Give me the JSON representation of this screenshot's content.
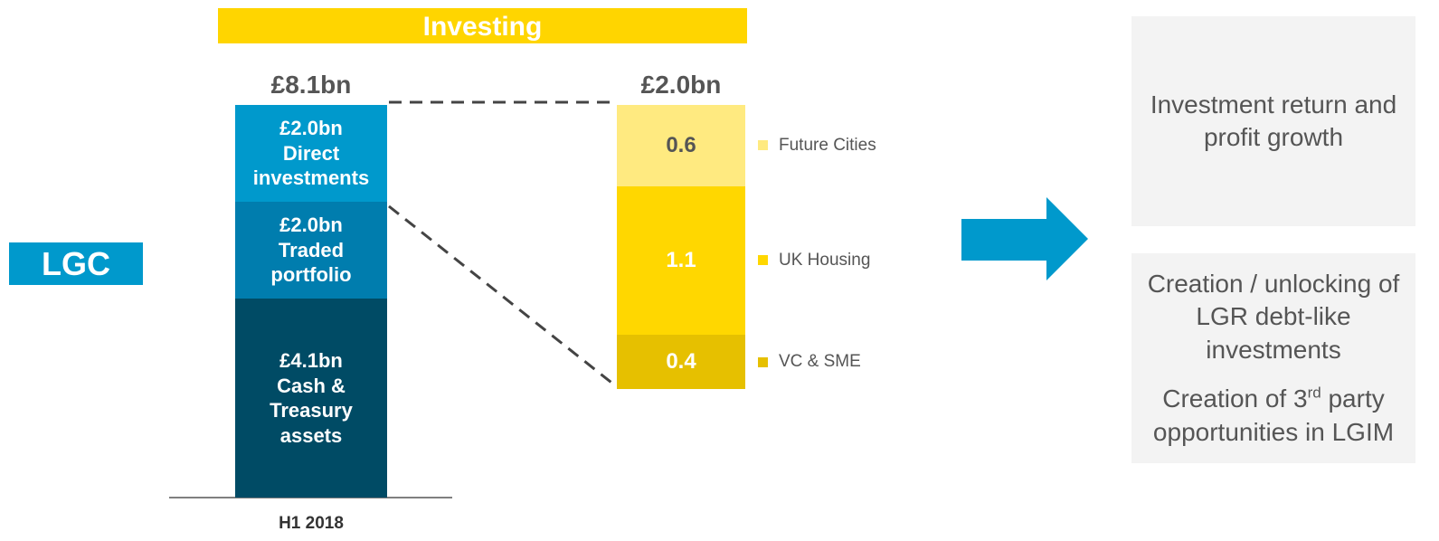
{
  "banner": "Investing",
  "side_label": "LGC",
  "chart_data": [
    {
      "type": "stacked-bar",
      "total_label": "£8.1bn",
      "categories": [
        "H1 2018"
      ],
      "ylim": [
        0,
        8.1
      ],
      "series": [
        {
          "name": "Cash & Treasury assets",
          "color": "#004b65",
          "label_color": "#ffffff",
          "values": [
            4.1
          ],
          "value_labels": [
            "£4.1bn"
          ]
        },
        {
          "name": "Traded portfolio",
          "color": "#007dae",
          "label_color": "#ffffff",
          "values": [
            2.0
          ],
          "value_labels": [
            "£2.0bn"
          ]
        },
        {
          "name": "Direct investments",
          "color": "#0099cc",
          "label_color": "#ffffff",
          "values": [
            2.0
          ],
          "value_labels": [
            "£2.0bn"
          ]
        }
      ]
    },
    {
      "type": "stacked-bar",
      "total_label": "£2.0bn",
      "ylim": [
        0,
        2.1
      ],
      "series": [
        {
          "name": "VC & SME",
          "color": "#e6c000",
          "label_color": "#ffffff",
          "values": [
            0.4
          ]
        },
        {
          "name": "UK Housing",
          "color": "#ffd700",
          "label_color": "#ffffff",
          "values": [
            1.1
          ]
        },
        {
          "name": "Future Cities",
          "color": "#ffea80",
          "label_color": "#555555",
          "values": [
            0.6
          ]
        }
      ]
    }
  ],
  "outcomes": [
    {
      "text": "Investment return and profit growth"
    },
    {
      "text": "Creation / unlocking of LGR debt-like investments"
    },
    {
      "pre": "Creation of  3",
      "sup": "rd",
      "post": " party opportunities in LGIM"
    }
  ]
}
